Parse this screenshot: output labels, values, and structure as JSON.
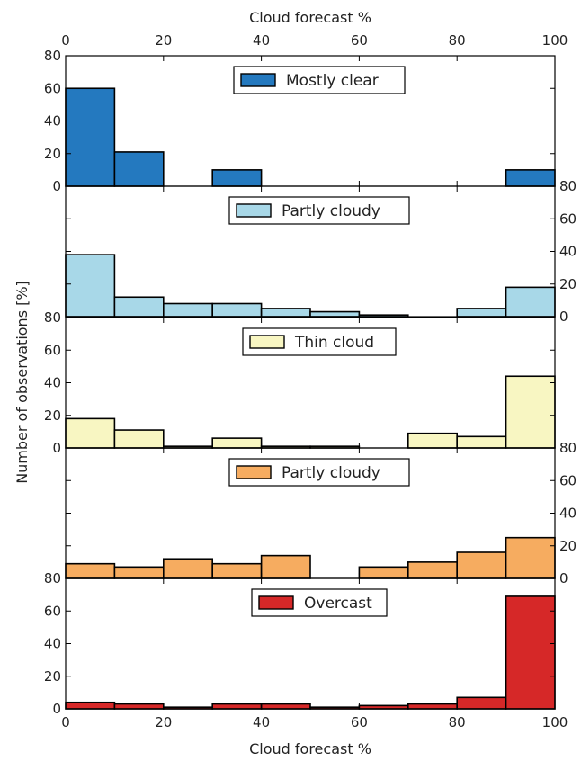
{
  "chart_data": {
    "type": "bar",
    "x_top_label": "Cloud forecast %",
    "x_bottom_label": "Cloud forecast %",
    "ylabel": "Number of observations [%]",
    "xlim": [
      0,
      100
    ],
    "x_ticks": [
      "0",
      "20",
      "40",
      "60",
      "80",
      "100"
    ],
    "y_ticks": [
      "0",
      "20",
      "40",
      "60",
      "80"
    ],
    "bin_edges": [
      0,
      10,
      20,
      30,
      40,
      50,
      60,
      70,
      80,
      90,
      100
    ],
    "ylim": [
      0,
      80
    ],
    "panels": [
      {
        "legend": "Mostly clear",
        "color": "#2479bf",
        "y_axis": "left",
        "values": [
          60,
          21,
          0,
          10,
          0,
          0,
          0,
          0,
          0,
          10
        ]
      },
      {
        "legend": "Partly cloudy",
        "color": "#a8d8e8",
        "y_axis": "right",
        "values": [
          38,
          12,
          8,
          8,
          5,
          3,
          1,
          0,
          5,
          18
        ]
      },
      {
        "legend": "Thin cloud",
        "color": "#f8f6c2",
        "y_axis": "left",
        "values": [
          18,
          11,
          1,
          6,
          1,
          1,
          0,
          9,
          7,
          44
        ]
      },
      {
        "legend": "Partly cloudy",
        "color": "#f6ac60",
        "y_axis": "right",
        "values": [
          9,
          7,
          12,
          9,
          14,
          0,
          7,
          10,
          16,
          25
        ]
      },
      {
        "legend": "Overcast",
        "color": "#d62828",
        "y_axis": "left",
        "values": [
          4,
          3,
          1,
          3,
          3,
          1,
          2,
          3,
          7,
          69
        ]
      }
    ]
  }
}
